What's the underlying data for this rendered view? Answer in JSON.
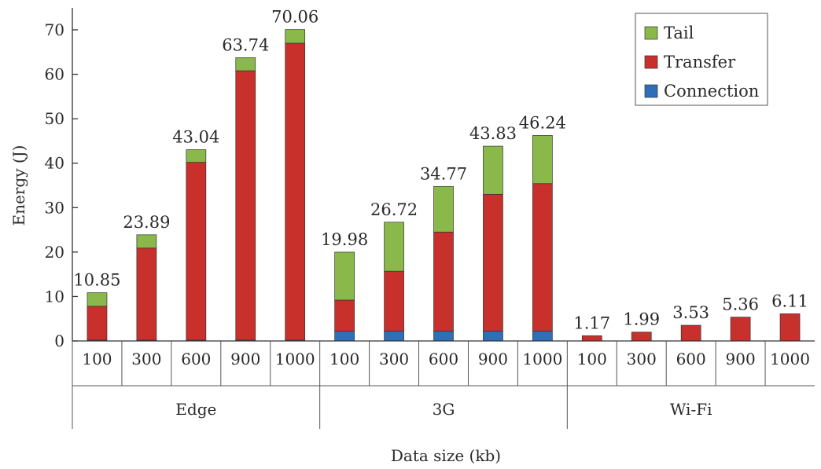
{
  "chart_data": {
    "type": "bar",
    "stacked": true,
    "title": "",
    "xlabel": "Data size (kb)",
    "ylabel": "Energy (J)",
    "ylim": [
      0,
      75
    ],
    "yticks": [
      0,
      10,
      20,
      30,
      40,
      50,
      60,
      70
    ],
    "grid": false,
    "legend_position": "top-right",
    "groups": [
      {
        "name": "Edge",
        "categories": [
          "100",
          "300",
          "600",
          "900",
          "1000"
        ]
      },
      {
        "name": "3G",
        "categories": [
          "100",
          "300",
          "600",
          "900",
          "1000"
        ]
      },
      {
        "name": "Wi-Fi",
        "categories": [
          "100",
          "300",
          "600",
          "900",
          "1000"
        ]
      }
    ],
    "series": [
      {
        "name": "Connection",
        "color": "#2e6fb8",
        "values": [
          0.2,
          0.2,
          0.2,
          0.2,
          0.2,
          2.2,
          2.2,
          2.2,
          2.2,
          2.2,
          0.0,
          0.0,
          0.0,
          0.0,
          0.0
        ]
      },
      {
        "name": "Transfer",
        "color": "#c8302c",
        "values": [
          7.6,
          20.7,
          40.0,
          60.6,
          66.8,
          7.0,
          13.5,
          22.3,
          30.8,
          33.2,
          1.17,
          1.99,
          3.53,
          5.36,
          6.11
        ]
      },
      {
        "name": "Tail",
        "color": "#8ab84a",
        "values": [
          3.05,
          2.99,
          2.84,
          2.94,
          3.06,
          10.78,
          11.02,
          10.27,
          10.83,
          10.84,
          0.0,
          0.0,
          0.0,
          0.0,
          0.0
        ]
      }
    ],
    "totals": [
      "10.85",
      "23.89",
      "43.04",
      "63.74",
      "70.06",
      "19.98",
      "26.72",
      "34.77",
      "43.83",
      "46.24",
      "1.17",
      "1.99",
      "3.53",
      "5.36",
      "6.11"
    ],
    "legend_order": [
      "Tail",
      "Transfer",
      "Connection"
    ]
  }
}
